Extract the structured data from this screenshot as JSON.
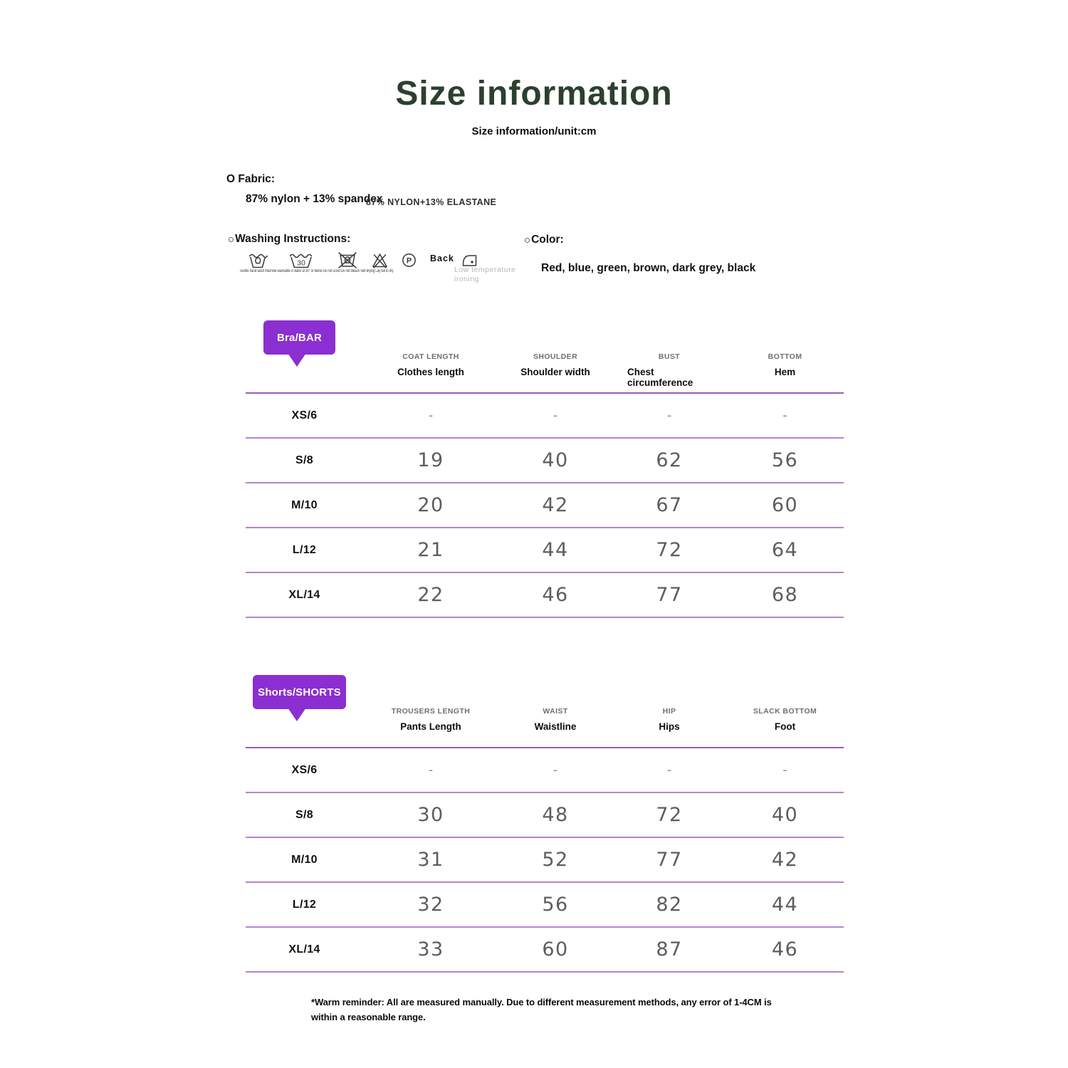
{
  "page": {
    "title": "Size information",
    "subtitle": "Size information/unit:cm",
    "colors": {
      "title_green": "#2c402f",
      "accent_purple": "#8b2ed2",
      "line_strong": "#9d59bb",
      "line_purple": "#b584cf",
      "number_gray": "#5d5d5d"
    }
  },
  "fabric": {
    "label": "O Fabric:",
    "value_primary": "87% nylon + 13% spandex",
    "value_secondary": "87% NYLON+13% ELASTANE"
  },
  "washing": {
    "label": "Washing Instructions:",
    "machine_wash_temp": "30",
    "p_letter": "P",
    "caption_line": "Gentle hand wash Machine washable in water at 30° or below Do not scrub Do not bleach Self-drying Lay flat to dry",
    "back_label": "Back",
    "iron_label": "Low temperature ironing",
    "icons": [
      "hand-wash-icon",
      "machine-wash-30-icon",
      "do-not-scrub-icon",
      "do-not-bleach-icon",
      "dry-clean-p-icon",
      "iron-low-temp-icon"
    ]
  },
  "color": {
    "label": "Color:",
    "value": "Red, blue, green, brown, dark grey, black"
  },
  "tables": [
    {
      "badge": "Bra/BAR",
      "columns": [
        {
          "top": "COAT LENGTH",
          "bottom": "Clothes length"
        },
        {
          "top": "SHOULDER",
          "bottom": "Shoulder width"
        },
        {
          "top": "BUST",
          "bottom": "Chest circumference"
        },
        {
          "top": "BOTTOM",
          "bottom": "Hem"
        }
      ],
      "rows": [
        {
          "size": "XS/6",
          "values": [
            "-",
            "-",
            "-",
            "-"
          ]
        },
        {
          "size": "S/8",
          "values": [
            "19",
            "40",
            "62",
            "56"
          ]
        },
        {
          "size": "M/10",
          "values": [
            "20",
            "42",
            "67",
            "60"
          ]
        },
        {
          "size": "L/12",
          "values": [
            "21",
            "44",
            "72",
            "64"
          ]
        },
        {
          "size": "XL/14",
          "values": [
            "22",
            "46",
            "77",
            "68"
          ]
        }
      ]
    },
    {
      "badge": "Shorts/SHORTS",
      "columns": [
        {
          "top": "TROUSERS LENGTH",
          "bottom": "Pants Length"
        },
        {
          "top": "WAIST",
          "bottom": "Waistline"
        },
        {
          "top": "HIP",
          "bottom": "Hips"
        },
        {
          "top": "SLACK BOTTOM",
          "bottom": "Foot"
        }
      ],
      "rows": [
        {
          "size": "XS/6",
          "values": [
            "-",
            "-",
            "-",
            "-"
          ]
        },
        {
          "size": "S/8",
          "values": [
            "30",
            "48",
            "72",
            "40"
          ]
        },
        {
          "size": "M/10",
          "values": [
            "31",
            "52",
            "77",
            "42"
          ]
        },
        {
          "size": "L/12",
          "values": [
            "32",
            "56",
            "82",
            "44"
          ]
        },
        {
          "size": "XL/14",
          "values": [
            "33",
            "60",
            "87",
            "46"
          ]
        }
      ]
    }
  ],
  "footer": {
    "note": "*Warm reminder: All are measured manually. Due to different measurement methods, any error of 1-4CM is within a reasonable range."
  }
}
